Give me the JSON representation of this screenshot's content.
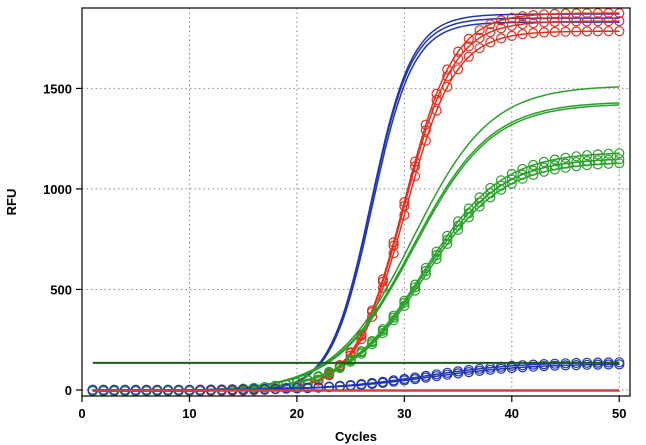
{
  "chart_data": {
    "type": "line",
    "xlabel": "Cycles",
    "ylabel": "RFU",
    "xlim": [
      0,
      51
    ],
    "ylim": [
      -30,
      1900
    ],
    "xticks": [
      0,
      10,
      20,
      30,
      40,
      50
    ],
    "yticks": [
      0,
      500,
      1000,
      1500
    ],
    "grid": true,
    "legend": "none",
    "threshold": 135,
    "threshold_color": "#1a5c1a",
    "x_cycles": [
      1,
      50
    ],
    "series": [
      {
        "color": "#2035b0",
        "marker": "none",
        "curve": {
          "max": 1875,
          "mid": 26.9,
          "slope": 1.9,
          "base": -5
        }
      },
      {
        "color": "#2035b0",
        "marker": "none",
        "curve": {
          "max": 1855,
          "mid": 26.9,
          "slope": 1.9,
          "base": -5
        }
      },
      {
        "color": "#2035b0",
        "marker": "none",
        "curve": {
          "max": 1835,
          "mid": 27.0,
          "slope": 1.9,
          "base": -5
        }
      },
      {
        "color": "#e03020",
        "marker": "circle",
        "curve": {
          "max": 1880,
          "mid": 30.0,
          "slope": 2.3,
          "base": -5
        }
      },
      {
        "color": "#e03020",
        "marker": "circle",
        "curve": {
          "max": 1840,
          "mid": 30.0,
          "slope": 2.3,
          "base": -5
        }
      },
      {
        "color": "#e03020",
        "marker": "circle",
        "curve": {
          "max": 1790,
          "mid": 30.1,
          "slope": 2.3,
          "base": -5
        }
      },
      {
        "color": "#2aa02a",
        "marker": "none",
        "curve": {
          "max": 1520,
          "mid": 30.8,
          "slope": 3.6,
          "base": -5
        }
      },
      {
        "color": "#2aa02a",
        "marker": "none",
        "curve": {
          "max": 1440,
          "mid": 30.8,
          "slope": 3.6,
          "base": -5
        }
      },
      {
        "color": "#2aa02a",
        "marker": "none",
        "curve": {
          "max": 1430,
          "mid": 30.9,
          "slope": 3.6,
          "base": -5
        }
      },
      {
        "color": "#2aa02a",
        "marker": "circle",
        "curve": {
          "max": 1190,
          "mid": 31.8,
          "slope": 3.6,
          "base": -5
        }
      },
      {
        "color": "#2aa02a",
        "marker": "circle",
        "curve": {
          "max": 1160,
          "mid": 31.8,
          "slope": 3.6,
          "base": -5
        }
      },
      {
        "color": "#2aa02a",
        "marker": "circle",
        "curve": {
          "max": 1140,
          "mid": 31.9,
          "slope": 3.6,
          "base": -5
        }
      },
      {
        "color": "#2035b0",
        "marker": "circle",
        "curve": {
          "max": 140,
          "mid": 32.0,
          "slope": 4.5,
          "base": 0
        }
      },
      {
        "color": "#2035b0",
        "marker": "circle",
        "curve": {
          "max": 130,
          "mid": 32.5,
          "slope": 4.5,
          "base": 0
        }
      },
      {
        "color": "#d04040",
        "marker": "none",
        "curve": {
          "max": 0,
          "mid": 30,
          "slope": 3,
          "base": -5
        }
      },
      {
        "color": "#d04040",
        "marker": "none",
        "curve": {
          "max": 0,
          "mid": 30,
          "slope": 3,
          "base": 0
        }
      }
    ]
  }
}
